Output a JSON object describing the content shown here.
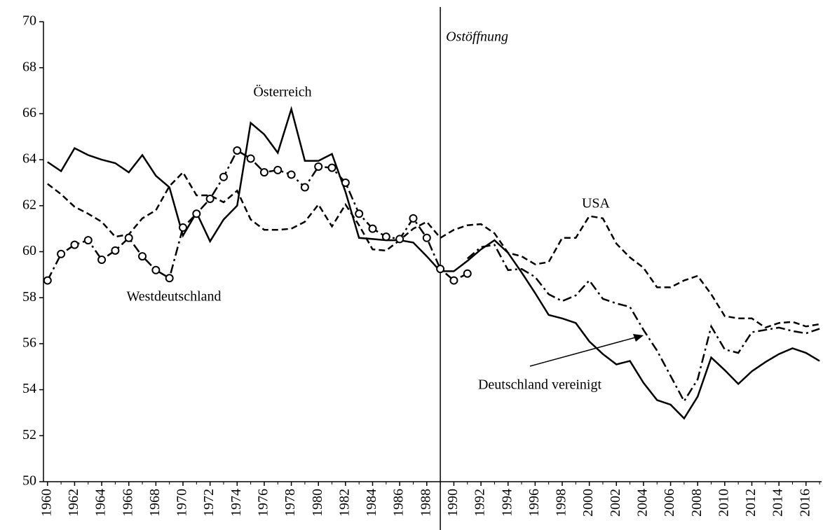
{
  "chart_data": {
    "type": "line",
    "x": [
      1960,
      1961,
      1962,
      1963,
      1964,
      1965,
      1966,
      1967,
      1968,
      1969,
      1970,
      1971,
      1972,
      1973,
      1974,
      1975,
      1976,
      1977,
      1978,
      1979,
      1980,
      1981,
      1982,
      1983,
      1984,
      1985,
      1986,
      1987,
      1988,
      1989,
      1990,
      1991,
      1992,
      1993,
      1994,
      1995,
      1996,
      1997,
      1998,
      1999,
      2000,
      2001,
      2002,
      2003,
      2004,
      2005,
      2006,
      2007,
      2008,
      2009,
      2010,
      2011,
      2012,
      2013,
      2014,
      2015,
      2016,
      2017
    ],
    "xlim": [
      1959.7,
      2017.15
    ],
    "xticks": [
      1960,
      1962,
      1964,
      1966,
      1968,
      1970,
      1972,
      1974,
      1976,
      1978,
      1980,
      1982,
      1984,
      1986,
      1988,
      1990,
      1992,
      1994,
      1996,
      1998,
      2000,
      2002,
      2004,
      2006,
      2008,
      2010,
      2012,
      2014,
      2016
    ],
    "ylim": [
      50,
      70
    ],
    "yticks": [
      50,
      52,
      54,
      56,
      58,
      60,
      62,
      64,
      66,
      68,
      70
    ],
    "series": [
      {
        "name": "Österreich",
        "color": "#000000",
        "style": "solid",
        "markers": false,
        "values": [
          63.9,
          63.5,
          64.5,
          64.2,
          64.0,
          63.85,
          63.45,
          64.2,
          63.3,
          62.8,
          60.7,
          61.7,
          60.45,
          61.4,
          62.0,
          65.6,
          65.1,
          64.3,
          66.2,
          63.95,
          63.95,
          64.25,
          62.6,
          60.6,
          60.55,
          60.5,
          60.5,
          60.4,
          59.8,
          59.15,
          59.15,
          59.6,
          60.1,
          60.5,
          59.95,
          59.1,
          58.2,
          57.25,
          57.1,
          56.9,
          56.1,
          55.55,
          55.1,
          55.25,
          54.3,
          53.55,
          53.35,
          52.75,
          53.7,
          55.4,
          54.85,
          54.25,
          54.8,
          55.2,
          55.55,
          55.8,
          55.6,
          55.25
        ]
      },
      {
        "name": "USA",
        "color": "#000000",
        "style": "dashed",
        "markers": false,
        "values": [
          62.95,
          62.5,
          61.95,
          61.65,
          61.3,
          60.65,
          60.75,
          61.45,
          61.8,
          62.85,
          63.45,
          62.45,
          62.45,
          62.15,
          62.65,
          61.4,
          60.95,
          60.95,
          61.0,
          61.3,
          62.05,
          61.1,
          62.05,
          61.15,
          60.1,
          60.05,
          60.5,
          61.0,
          61.3,
          60.6,
          60.95,
          61.15,
          61.2,
          60.8,
          59.95,
          59.8,
          59.45,
          59.55,
          60.6,
          60.6,
          61.55,
          61.45,
          60.35,
          59.75,
          59.3,
          58.45,
          58.45,
          58.75,
          58.95,
          58.15,
          57.2,
          57.1,
          57.1,
          56.7,
          56.9,
          56.95,
          56.75,
          56.85
        ]
      },
      {
        "name": "Westdeutschland",
        "color": "#000000",
        "style": "dashdot",
        "markers": true,
        "values": [
          58.75,
          59.9,
          60.3,
          60.5,
          59.65,
          60.05,
          60.6,
          59.8,
          59.2,
          58.85,
          61.05,
          61.65,
          62.3,
          63.25,
          64.4,
          64.05,
          63.45,
          63.55,
          63.35,
          62.8,
          63.7,
          63.65,
          63.0,
          61.65,
          61.0,
          60.65,
          60.55,
          61.45,
          60.6,
          59.25,
          58.75,
          59.05,
          null,
          null,
          null,
          null,
          null,
          null,
          null,
          null,
          null,
          null,
          null,
          null,
          null,
          null,
          null,
          null,
          null,
          null,
          null,
          null,
          null,
          null,
          null,
          null,
          null,
          null
        ]
      },
      {
        "name": "Deutschland vereinigt",
        "color": "#000000",
        "style": "dashdot",
        "markers": false,
        "values": [
          null,
          null,
          null,
          null,
          null,
          null,
          null,
          null,
          null,
          null,
          null,
          null,
          null,
          null,
          null,
          null,
          null,
          null,
          null,
          null,
          null,
          null,
          null,
          null,
          null,
          null,
          null,
          null,
          null,
          null,
          null,
          59.7,
          60.2,
          60.3,
          59.2,
          59.25,
          58.9,
          58.15,
          57.85,
          58.1,
          58.75,
          57.95,
          57.75,
          57.6,
          56.6,
          55.7,
          54.6,
          53.5,
          54.45,
          56.75,
          55.75,
          55.6,
          56.5,
          56.6,
          56.7,
          56.55,
          56.45,
          56.65
        ]
      }
    ],
    "vline": {
      "x": 1989,
      "label": "Ostöffnung"
    }
  }
}
